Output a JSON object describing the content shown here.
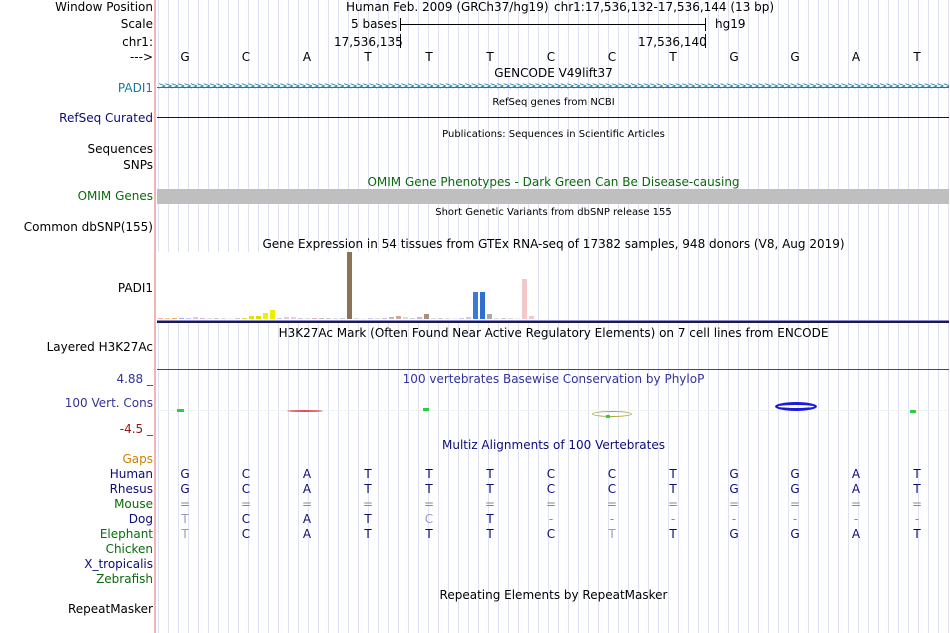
{
  "header": {
    "window_position_label": "Window Position",
    "scale_label": "Scale",
    "chrom_label": "chr1:",
    "arrow_label": "--->",
    "assembly": "Human Feb. 2009 (GRCh37/hg19)",
    "position": "chr1:17,536,132-17,536,144 (13 bp)",
    "scale_text": "5 bases",
    "db": "hg19",
    "coord_left": "17,536,135",
    "coord_right": "17,536,140"
  },
  "sequence": [
    "G",
    "C",
    "A",
    "T",
    "T",
    "T",
    "C",
    "C",
    "T",
    "G",
    "G",
    "A",
    "T"
  ],
  "tracks": {
    "gencode_title": "GENCODE V49lift37",
    "gencode_label": "PADI1",
    "refseq_title": "RefSeq genes from NCBI",
    "refseq_label": "RefSeq Curated",
    "pubs_title": "Publications: Sequences in Scientific Articles",
    "sequences_label": "Sequences",
    "snps_label": "SNPs",
    "omim_title": "OMIM Gene Phenotypes - Dark Green Can Be Disease-causing",
    "omim_label": "OMIM Genes",
    "dbsnp_title": "Short Genetic Variants from dbSNP release 155",
    "dbsnp_label": "Common dbSNP(155)",
    "gtex_title": "Gene Expression in 54 tissues from GTEx RNA-seq of 17382 samples, 948 donors (V8, Aug 2019)",
    "gtex_label": "PADI1",
    "h3k27_title": "H3K27Ac Mark (Often Found Near Active Regulatory Elements) on 7 cell lines from ENCODE",
    "h3k27_label": "Layered H3K27Ac",
    "phylop_title": "100 vertebrates Basewise Conservation by PhyloP",
    "phylop_label": "100 Vert. Cons",
    "phylop_max": "4.88 _",
    "phylop_min": "-4.5 _",
    "multiz_title": "Multiz Alignments of 100 Vertebrates",
    "repeat_title": "Repeating Elements by RepeatMasker",
    "repeat_label": "RepeatMasker"
  },
  "colors": {
    "gencode": "#1a7a9c",
    "refseq": "#0c0c78",
    "omim": "#0a6a0a",
    "gaps": "#d08000",
    "phylop": "#333399",
    "phylop_neg": "#8b1a1a"
  },
  "alignment": {
    "species": [
      {
        "name": "Gaps",
        "color": "#d08000",
        "bases": []
      },
      {
        "name": "Human",
        "color": "#0c0c78",
        "bases": [
          "G",
          "C",
          "A",
          "T",
          "T",
          "T",
          "C",
          "C",
          "T",
          "G",
          "G",
          "A",
          "T"
        ]
      },
      {
        "name": "Rhesus",
        "color": "#0c0c78",
        "bases": [
          "G",
          "C",
          "A",
          "T",
          "T",
          "T",
          "C",
          "C",
          "T",
          "G",
          "G",
          "A",
          "T"
        ]
      },
      {
        "name": "Mouse",
        "color": "#0a6a0a",
        "bases": [
          "=",
          "=",
          "=",
          "=",
          "=",
          "=",
          "=",
          "=",
          "=",
          "=",
          "=",
          "=",
          "="
        ]
      },
      {
        "name": "Dog",
        "color": "#0c0c78",
        "bases": [
          "T",
          "C",
          "A",
          "T",
          "C",
          "T",
          "-",
          "-",
          "-",
          "-",
          "-",
          "-",
          "-"
        ]
      },
      {
        "name": "Elephant",
        "color": "#0a6a0a",
        "bases": [
          "T",
          "C",
          "A",
          "T",
          "T",
          "T",
          "C",
          "T",
          "T",
          "G",
          "G",
          "A",
          "T"
        ]
      },
      {
        "name": "Chicken",
        "color": "#0a6a0a",
        "bases": []
      },
      {
        "name": "X_tropicalis",
        "color": "#0c0c78",
        "bases": []
      },
      {
        "name": "Zebrafish",
        "color": "#0a6a0a",
        "bases": []
      }
    ]
  },
  "gtex_bars": [
    {
      "value": 0.02,
      "color": "#ffaaaa"
    },
    {
      "value": 0.02,
      "color": "#ffcc66"
    },
    {
      "value": 0.02,
      "color": "#ffaa66"
    },
    {
      "value": 0.02,
      "color": "#aaaaff"
    },
    {
      "value": 0.02,
      "color": "#ccccff"
    },
    {
      "value": 0.03,
      "color": "#eebbee"
    },
    {
      "value": 0.02,
      "color": "#ccbbcc"
    },
    {
      "value": 0.02,
      "color": "#ddddcc"
    },
    {
      "value": 0.01,
      "color": "#cccccc"
    },
    {
      "value": 0.01,
      "color": "#dddddd"
    },
    {
      "value": 0.01,
      "color": "#eeeeee"
    },
    {
      "value": 0.01,
      "color": "#cccccc"
    },
    {
      "value": 0.01,
      "color": "#dddd55"
    },
    {
      "value": 0.04,
      "color": "#e2e200"
    },
    {
      "value": 0.05,
      "color": "#dddd00"
    },
    {
      "value": 0.09,
      "color": "#f0f000"
    },
    {
      "value": 0.13,
      "color": "#eeee00"
    },
    {
      "value": 0.02,
      "color": "#ccccee"
    },
    {
      "value": 0.03,
      "color": "#ddccdd"
    },
    {
      "value": 0.03,
      "color": "#eeccdd"
    },
    {
      "value": 0.02,
      "color": "#ccccdd"
    },
    {
      "value": 0.01,
      "color": "#dddddd"
    },
    {
      "value": 0.02,
      "color": "#ddbbbb"
    },
    {
      "value": 0.02,
      "color": "#ccbbbb"
    },
    {
      "value": 0.01,
      "color": "#cccccc"
    },
    {
      "value": 0.01,
      "color": "#dddddd"
    },
    {
      "value": 0.02,
      "color": "#ccccdd"
    },
    {
      "value": 1.0,
      "color": "#8b7355"
    },
    {
      "value": 0.02,
      "color": "#dddddd"
    },
    {
      "value": 0.01,
      "color": "#eeeeee"
    },
    {
      "value": 0.02,
      "color": "#ccccee"
    },
    {
      "value": 0.01,
      "color": "#dddddd"
    },
    {
      "value": 0.02,
      "color": "#ccbbdd"
    },
    {
      "value": 0.03,
      "color": "#bbbbbb"
    },
    {
      "value": 0.05,
      "color": "#cca899"
    },
    {
      "value": 0.03,
      "color": "#dddddd"
    },
    {
      "value": 0.02,
      "color": "#cccccc"
    },
    {
      "value": 0.03,
      "color": "#bbbbcc"
    },
    {
      "value": 0.07,
      "color": "#a89080"
    },
    {
      "value": 0.02,
      "color": "#dddddd"
    },
    {
      "value": 0.02,
      "color": "#cccccc"
    },
    {
      "value": 0.02,
      "color": "#dddddd"
    },
    {
      "value": 0.01,
      "color": "#eeeeee"
    },
    {
      "value": 0.02,
      "color": "#ccccee"
    },
    {
      "value": 0.03,
      "color": "#ccccdd"
    },
    {
      "value": 0.4,
      "color": "#3b7ad8"
    },
    {
      "value": 0.41,
      "color": "#2f6fcf"
    },
    {
      "value": 0.07,
      "color": "#aaaaaa"
    },
    {
      "value": 0.02,
      "color": "#dddddd"
    },
    {
      "value": 0.02,
      "color": "#cccccc"
    },
    {
      "value": 0.02,
      "color": "#dddddd"
    },
    {
      "value": 0.02,
      "color": "#eeeeee"
    },
    {
      "value": 0.6,
      "color": "#f2c8c8"
    },
    {
      "value": 0.05,
      "color": "#eecccc"
    }
  ]
}
